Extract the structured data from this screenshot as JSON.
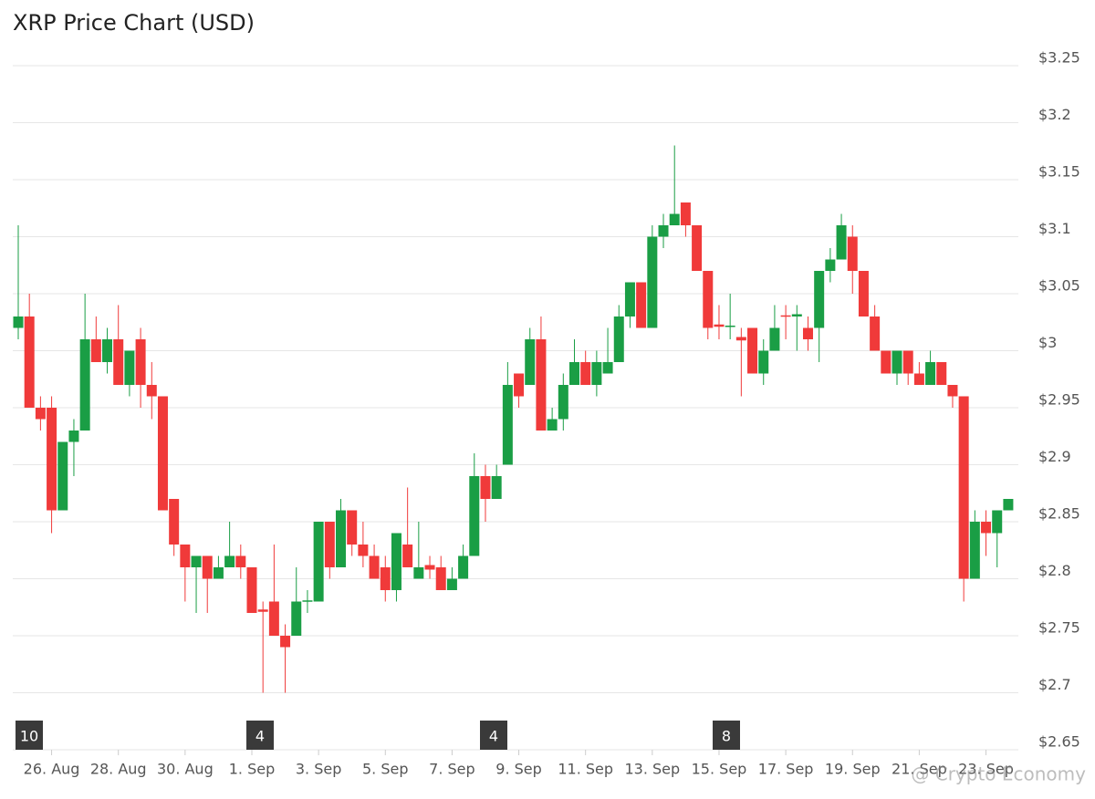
{
  "chart_data": {
    "type": "candlestick",
    "title": "XRP Price Chart (USD)",
    "categories": [
      null,
      null,
      null,
      "26. Aug",
      null,
      null,
      null,
      null,
      null,
      "28. Aug",
      null,
      null,
      null,
      null,
      null,
      "30. Aug",
      null,
      null,
      null,
      null,
      null,
      "1. Sep",
      null,
      null,
      null,
      null,
      null,
      "3. Sep",
      null,
      null,
      null,
      null,
      null,
      "5. Sep",
      null,
      null,
      null,
      null,
      null,
      "7. Sep",
      null,
      null,
      null,
      null,
      null,
      "9. Sep",
      null,
      null,
      null,
      null,
      null,
      "11. Sep",
      null,
      null,
      null,
      null,
      null,
      "13. Sep",
      null,
      null,
      null,
      null,
      null,
      "15. Sep",
      null,
      null,
      null,
      null,
      null,
      "17. Sep",
      null,
      null,
      null,
      null,
      null,
      "19. Sep",
      null,
      null,
      null,
      null,
      null,
      "21. Sep",
      null,
      null,
      null,
      null,
      null,
      "23. Sep",
      null,
      null
    ],
    "open": [
      3.02,
      3.03,
      2.95,
      2.95,
      2.86,
      2.92,
      2.93,
      3.01,
      2.99,
      3.01,
      2.97,
      3.01,
      2.97,
      2.96,
      2.87,
      2.83,
      2.81,
      2.82,
      2.8,
      2.81,
      2.82,
      2.81,
      2.773,
      2.78,
      2.75,
      2.75,
      2.78,
      2.78,
      2.85,
      2.81,
      2.86,
      2.83,
      2.82,
      2.81,
      2.79,
      2.83,
      2.8,
      2.812,
      2.81,
      2.79,
      2.8,
      2.82,
      2.89,
      2.87,
      2.9,
      2.98,
      2.97,
      3.01,
      2.93,
      2.94,
      2.97,
      2.99,
      2.97,
      2.98,
      2.99,
      3.03,
      3.06,
      3.02,
      3.1,
      3.11,
      3.13,
      3.11,
      3.07,
      3.023,
      3.021,
      3.012,
      3.02,
      2.98,
      3.0,
      3.031,
      3.03,
      3.02,
      3.02,
      3.07,
      3.08,
      3.1,
      3.07,
      3.03,
      3.0,
      2.98,
      3.0,
      2.98,
      2.97,
      2.99,
      2.97,
      2.96,
      2.8,
      2.85,
      2.84,
      2.86
    ],
    "high": [
      3.11,
      3.05,
      2.96,
      2.96,
      2.92,
      2.94,
      3.05,
      3.03,
      3.02,
      3.04,
      3.0,
      3.02,
      2.99,
      2.96,
      2.87,
      2.83,
      2.82,
      2.82,
      2.82,
      2.85,
      2.83,
      2.81,
      2.78,
      2.83,
      2.76,
      2.81,
      2.79,
      2.85,
      2.85,
      2.87,
      2.86,
      2.85,
      2.83,
      2.82,
      2.84,
      2.88,
      2.85,
      2.82,
      2.82,
      2.81,
      2.83,
      2.91,
      2.9,
      2.9,
      2.99,
      2.98,
      3.02,
      3.03,
      2.95,
      2.98,
      3.01,
      3.0,
      3.0,
      3.02,
      3.04,
      3.06,
      3.06,
      3.11,
      3.12,
      3.18,
      3.13,
      3.11,
      3.07,
      3.04,
      3.05,
      3.02,
      3.02,
      3.01,
      3.04,
      3.04,
      3.04,
      3.03,
      3.07,
      3.09,
      3.12,
      3.11,
      3.07,
      3.04,
      3.0,
      3.0,
      3.0,
      2.99,
      3.0,
      2.99,
      2.97,
      2.96,
      2.86,
      2.86,
      2.86,
      2.87
    ],
    "low": [
      3.01,
      2.95,
      2.93,
      2.84,
      2.86,
      2.89,
      2.93,
      2.99,
      2.98,
      2.97,
      2.96,
      2.95,
      2.94,
      2.86,
      2.82,
      2.78,
      2.77,
      2.77,
      2.8,
      2.81,
      2.8,
      2.77,
      2.7,
      2.75,
      2.7,
      2.75,
      2.77,
      2.78,
      2.8,
      2.81,
      2.82,
      2.81,
      2.8,
      2.78,
      2.78,
      2.81,
      2.8,
      2.8,
      2.79,
      2.79,
      2.8,
      2.82,
      2.85,
      2.87,
      2.9,
      2.95,
      2.97,
      2.93,
      2.93,
      2.93,
      2.97,
      2.97,
      2.96,
      2.98,
      2.99,
      3.02,
      3.02,
      3.02,
      3.09,
      3.11,
      3.1,
      3.07,
      3.01,
      3.01,
      3.01,
      2.96,
      2.98,
      2.97,
      3.0,
      3.01,
      3.0,
      3.0,
      2.99,
      3.06,
      3.08,
      3.05,
      3.03,
      3.0,
      2.98,
      2.97,
      2.97,
      2.97,
      2.97,
      2.97,
      2.95,
      2.78,
      2.8,
      2.82,
      2.81,
      2.86
    ],
    "close": [
      3.03,
      2.95,
      2.94,
      2.86,
      2.92,
      2.93,
      3.01,
      2.99,
      3.01,
      2.97,
      3.0,
      2.97,
      2.96,
      2.86,
      2.83,
      2.81,
      2.82,
      2.8,
      2.81,
      2.82,
      2.81,
      2.77,
      2.771,
      2.75,
      2.74,
      2.78,
      2.781,
      2.85,
      2.81,
      2.86,
      2.83,
      2.82,
      2.8,
      2.79,
      2.84,
      2.81,
      2.81,
      2.808,
      2.79,
      2.8,
      2.82,
      2.89,
      2.87,
      2.89,
      2.97,
      2.96,
      3.01,
      2.93,
      2.94,
      2.97,
      2.99,
      2.97,
      2.99,
      2.99,
      3.03,
      3.06,
      3.02,
      3.1,
      3.11,
      3.12,
      3.11,
      3.07,
      3.02,
      3.021,
      3.022,
      3.009,
      2.98,
      3.0,
      3.02,
      3.03,
      3.032,
      3.01,
      3.07,
      3.08,
      3.11,
      3.07,
      3.03,
      3.0,
      2.98,
      3.0,
      2.98,
      2.97,
      2.99,
      2.97,
      2.96,
      2.8,
      2.85,
      2.84,
      2.86,
      2.87
    ],
    "up_color": "#1a9e45",
    "down_color": "#f03a3a",
    "ylim": [
      2.65,
      3.25
    ],
    "yticks": [
      {
        "value": 2.65,
        "label": "$2.65"
      },
      {
        "value": 2.7,
        "label": "$2.7"
      },
      {
        "value": 2.75,
        "label": "$2.75"
      },
      {
        "value": 2.8,
        "label": "$2.8"
      },
      {
        "value": 2.85,
        "label": "$2.85"
      },
      {
        "value": 2.9,
        "label": "$2.9"
      },
      {
        "value": 2.95,
        "label": "$2.95"
      },
      {
        "value": 3,
        "label": "$3"
      },
      {
        "value": 3.05,
        "label": "$3.05"
      },
      {
        "value": 3.1,
        "label": "$3.1"
      },
      {
        "value": 3.15,
        "label": "$3.15"
      },
      {
        "value": 3.2,
        "label": "$3.2"
      },
      {
        "value": 3.25,
        "label": "$3.25"
      }
    ],
    "grid": true,
    "event_markers": [
      "10",
      "4",
      "4",
      "8"
    ],
    "watermark": "@ Crypto Economy"
  }
}
